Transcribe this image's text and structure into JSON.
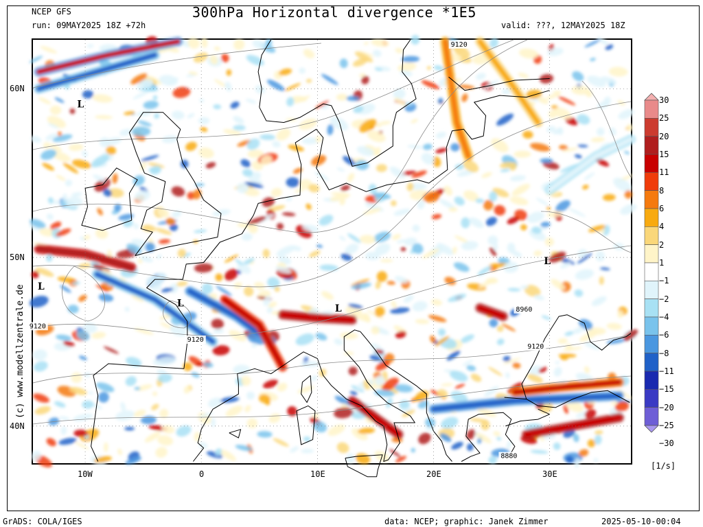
{
  "header": {
    "model": "NCEP GFS",
    "title": "300hPa Horizontal divergence *1E5",
    "run": "run: 09MAY2025 18Z +72h",
    "valid": "valid: ???, 12MAY2025 18Z"
  },
  "map": {
    "lat_labels": [
      {
        "text": "60N",
        "lat": 60
      },
      {
        "text": "50N",
        "lat": 50
      },
      {
        "text": "40N",
        "lat": 40
      }
    ],
    "lon_labels": [
      {
        "text": "10W",
        "lon": -10
      },
      {
        "text": "0",
        "lon": 0
      },
      {
        "text": "10E",
        "lon": 10
      },
      {
        "text": "20E",
        "lon": 20
      },
      {
        "text": "30E",
        "lon": 30
      }
    ],
    "extent": {
      "lon_min": -14.5,
      "lon_max": 37,
      "lat_min": 37.8,
      "lat_max": 62.9
    },
    "pressure_labels": [
      {
        "text": "L",
        "lon": -10.4,
        "lat": 58.9
      },
      {
        "text": "L",
        "lon": -13.8,
        "lat": 48.1
      },
      {
        "text": "L",
        "lon": -1.8,
        "lat": 47.1
      },
      {
        "text": "L",
        "lon": 11.8,
        "lat": 46.8
      },
      {
        "text": "L",
        "lon": 29.8,
        "lat": 49.6
      }
    ],
    "contour_labels": [
      {
        "text": "9120",
        "lon": 22.2,
        "lat": 62.5
      },
      {
        "text": "9120",
        "lon": -14.1,
        "lat": 45.8
      },
      {
        "text": "9120",
        "lon": -0.5,
        "lat": 45.0
      },
      {
        "text": "8960",
        "lon": 27.8,
        "lat": 46.8
      },
      {
        "text": "9120",
        "lon": 28.8,
        "lat": 44.6
      },
      {
        "text": "8880",
        "lon": 26.5,
        "lat": 38.1
      }
    ]
  },
  "colorbar": {
    "unit": "[1/s]",
    "levels": [
      "30",
      "25",
      "20",
      "15",
      "11",
      "8",
      "6",
      "4",
      "2",
      "1",
      "−1",
      "−2",
      "−4",
      "−6",
      "−8",
      "−11",
      "−15",
      "−20",
      "−25",
      "−30"
    ],
    "colors": [
      "#f4b0b0",
      "#e98a8a",
      "#cc3b2f",
      "#b01e1e",
      "#c80000",
      "#f03c0a",
      "#f57a0e",
      "#f8aa10",
      "#fad77a",
      "#fff4c8",
      "#ffffff",
      "#e0f4fb",
      "#a8e1f4",
      "#79c3ec",
      "#4a97e0",
      "#2061c8",
      "#1a2ab0",
      "#3a3ac4",
      "#6e5ed6",
      "#a998f0"
    ]
  },
  "footer": {
    "left": "GrADS: COLA/IGES",
    "center": "data: NCEP; graphic: Janek Zimmer",
    "right": "2025-05-10-00:04"
  },
  "credit": "(c) www.modellzentrale.de"
}
